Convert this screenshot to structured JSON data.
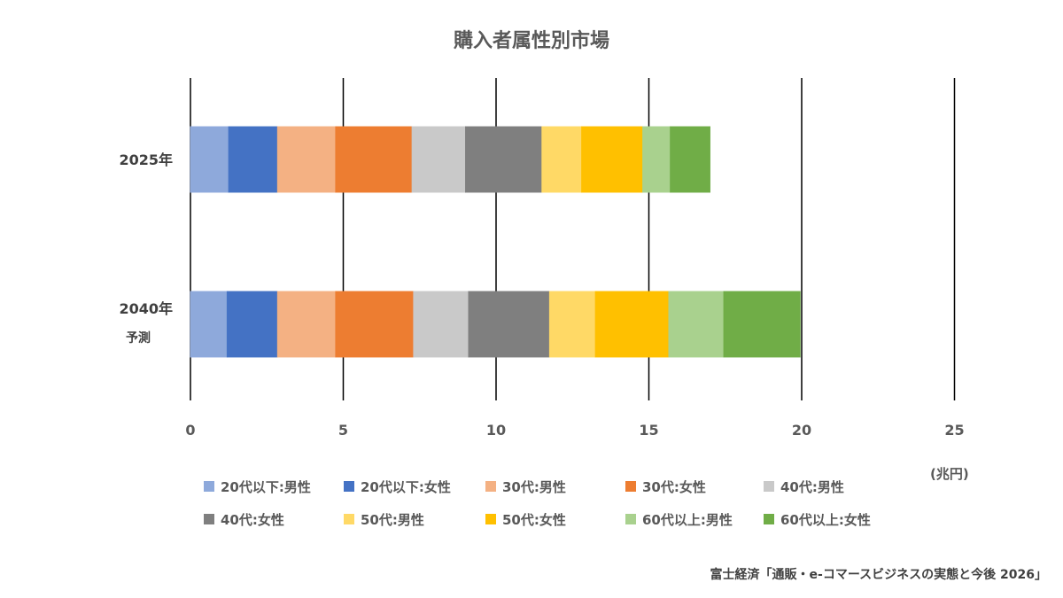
{
  "chart_data": {
    "type": "bar",
    "orientation": "horizontal",
    "stacked": true,
    "title": "購入者属性別市場",
    "categories": [
      "2025年",
      "2040年"
    ],
    "category_sublabels": [
      "",
      "予測"
    ],
    "x_ticks": [
      "0",
      "5",
      "10",
      "15",
      "20",
      "25"
    ],
    "xlim": [
      0,
      25
    ],
    "unit": "(兆円)",
    "grid": true,
    "legend_position": "bottom",
    "series": [
      {
        "name": "20代以下:男性",
        "color": "#8EA9DB",
        "values": [
          1.25,
          1.2
        ]
      },
      {
        "name": "20代以下:女性",
        "color": "#4472C4",
        "values": [
          1.6,
          1.65
        ]
      },
      {
        "name": "30代:男性",
        "color": "#F4B183",
        "values": [
          1.9,
          1.9
        ]
      },
      {
        "name": "30代:女性",
        "color": "#ED7D31",
        "values": [
          2.5,
          2.55
        ]
      },
      {
        "name": "40代:男性",
        "color": "#C9C9C9",
        "values": [
          1.75,
          1.8
        ]
      },
      {
        "name": "40代:女性",
        "color": "#7F7F7F",
        "values": [
          2.5,
          2.65
        ]
      },
      {
        "name": "50代:男性",
        "color": "#FFD966",
        "values": [
          1.3,
          1.5
        ]
      },
      {
        "name": "50代:女性",
        "color": "#FFC000",
        "values": [
          2.0,
          2.4
        ]
      },
      {
        "name": "60代以上:男性",
        "color": "#A9D18E",
        "values": [
          0.9,
          1.8
        ]
      },
      {
        "name": "60代以上:女性",
        "color": "#70AD47",
        "values": [
          1.3,
          2.5
        ]
      }
    ]
  },
  "source": "富士経済「通販・e-コマースビジネスの実態と今後 2026」"
}
